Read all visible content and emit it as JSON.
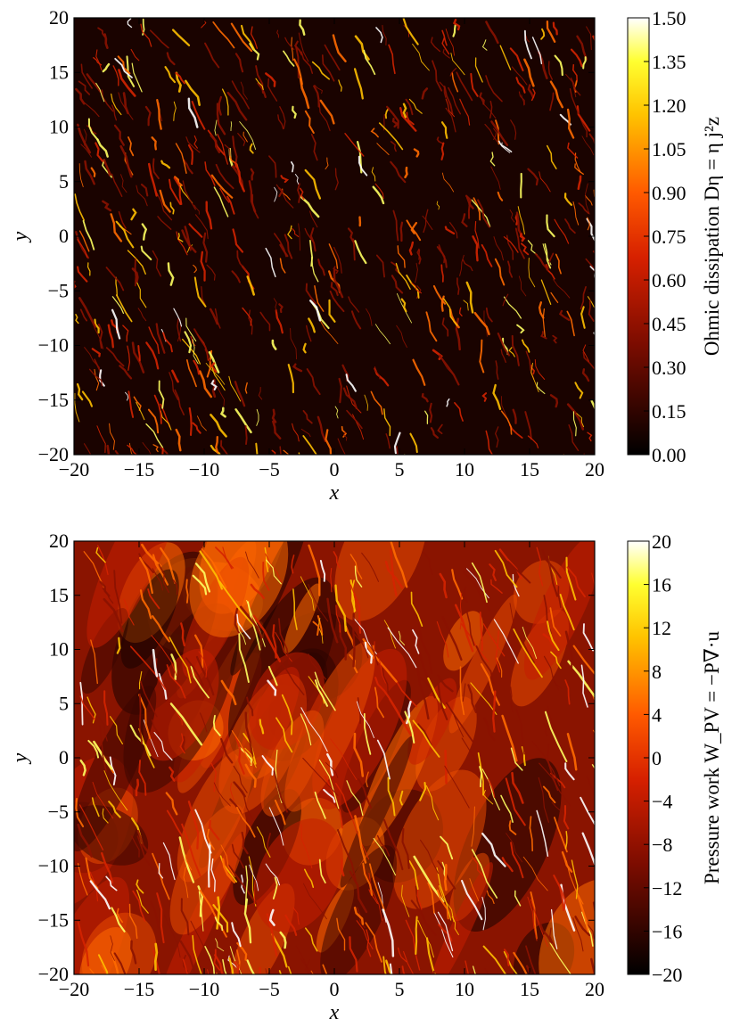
{
  "chart_data": [
    {
      "type": "heatmap",
      "xlabel": "x",
      "ylabel": "y",
      "xlim": [
        -20,
        20
      ],
      "ylim": [
        -20,
        20
      ],
      "xticks": [
        -20,
        -15,
        -10,
        -5,
        0,
        5,
        10,
        15,
        20
      ],
      "yticks": [
        -20,
        -15,
        -10,
        -5,
        0,
        5,
        10,
        15,
        20
      ],
      "xtick_labels": [
        "−20",
        "−15",
        "−10",
        "−5",
        "0",
        "5",
        "10",
        "15",
        "20"
      ],
      "ytick_labels": [
        "−20",
        "−15",
        "−10",
        "−5",
        "0",
        "5",
        "10",
        "15",
        "20"
      ],
      "colorbar": {
        "label": "Ohmic dissipation Dη = η j²z",
        "range": [
          0.0,
          1.5
        ],
        "ticks": [
          0.0,
          0.15,
          0.3,
          0.45,
          0.6,
          0.75,
          0.9,
          1.05,
          1.2,
          1.35,
          1.5
        ],
        "tick_labels": [
          "0.00",
          "0.15",
          "0.30",
          "0.45",
          "0.60",
          "0.75",
          "0.90",
          "1.05",
          "1.20",
          "1.35",
          "1.50"
        ],
        "colormap": "afmhot"
      },
      "background_level": 0.05,
      "structure": "thin bright current sheets, oriented diagonally (upper-left to lower-right)",
      "colors": {
        "low": "#000000",
        "mid": "#ff3000",
        "high": "#ffff40",
        "max": "#ffffff"
      }
    },
    {
      "type": "heatmap",
      "xlabel": "x",
      "ylabel": "y",
      "xlim": [
        -20,
        20
      ],
      "ylim": [
        -20,
        20
      ],
      "xticks": [
        -20,
        -15,
        -10,
        -5,
        0,
        5,
        10,
        15,
        20
      ],
      "yticks": [
        -20,
        -15,
        -10,
        -5,
        0,
        5,
        10,
        15,
        20
      ],
      "xtick_labels": [
        "−20",
        "−15",
        "−10",
        "−5",
        "0",
        "5",
        "10",
        "15",
        "20"
      ],
      "ytick_labels": [
        "−20",
        "−15",
        "−10",
        "−5",
        "0",
        "5",
        "10",
        "15",
        "20"
      ],
      "colorbar": {
        "label": "Pressure work W_PV = −P∇·u",
        "range": [
          -20,
          20
        ],
        "ticks": [
          -20,
          -16,
          -12,
          -8,
          -4,
          0,
          4,
          8,
          12,
          16,
          20
        ],
        "tick_labels": [
          "−20",
          "−16",
          "−12",
          "−8",
          "−4",
          "0",
          "4",
          "8",
          "12",
          "16",
          "20"
        ],
        "colormap": "afmhot"
      },
      "background_level": 0.35,
      "structure": "filamentary bright shock-like fronts over red background, oriented diagonally",
      "colors": {
        "low": "#000000",
        "mid": "#ff3000",
        "high": "#ffff40",
        "max": "#ffffff"
      }
    }
  ]
}
